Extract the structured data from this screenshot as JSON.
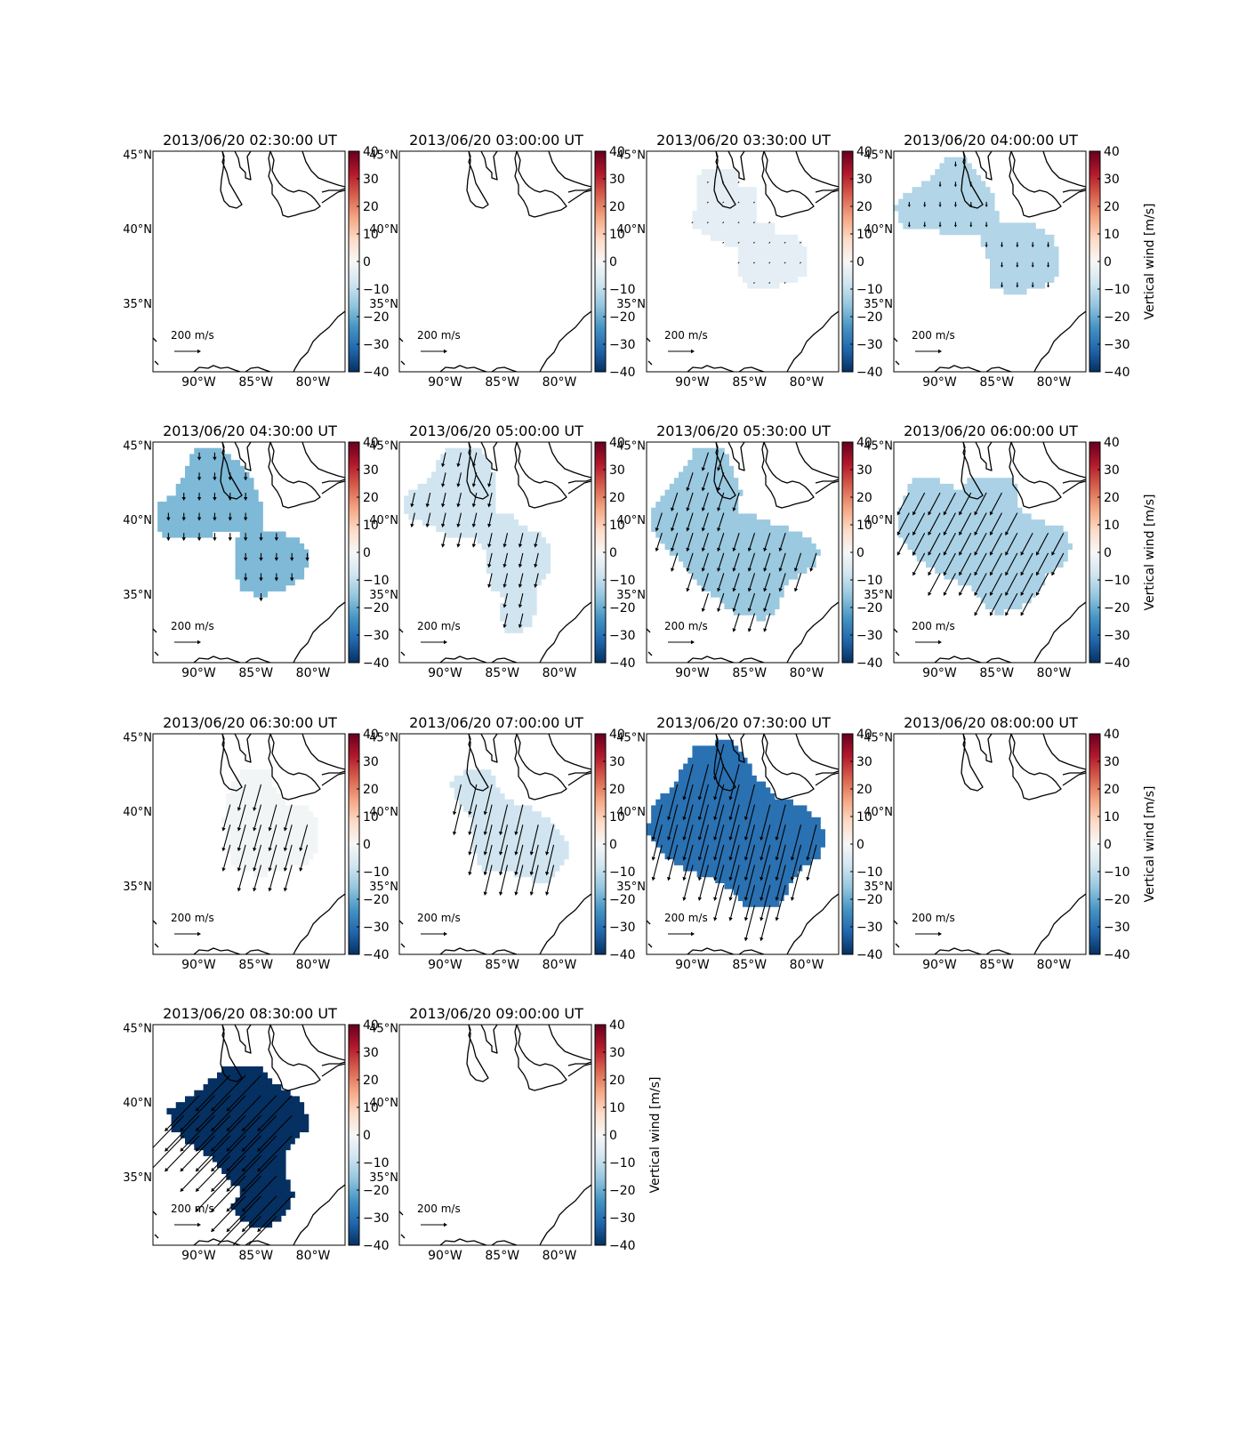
{
  "figure": {
    "colorbar_label": "Vertical wind [m/s]",
    "colorbar_ticks": [
      "40",
      "30",
      "20",
      "10",
      "0",
      "−10",
      "−20",
      "−30",
      "−40"
    ],
    "lat_labels": [
      "45°N",
      "40°N",
      "35°N"
    ],
    "lon_labels": [
      "90°W",
      "85°W",
      "80°W"
    ],
    "quiver_key": "200 m/s",
    "map_extent": {
      "lon": [
        -94,
        -77.2
      ],
      "lat": [
        30.4,
        45.2
      ]
    },
    "colormap": "RdBu_r",
    "value_range": [
      -40,
      40
    ]
  },
  "chart_data": [
    {
      "type": "heatmap",
      "title": "2013/06/20 02:30:00 UT",
      "value_m_s": null,
      "wind_vector": null,
      "region": "none"
    },
    {
      "type": "heatmap",
      "title": "2013/06/20 03:00:00 UT",
      "value_m_s": null,
      "wind_vector": null,
      "region": "none"
    },
    {
      "type": "heatmap",
      "title": "2013/06/20 03:30:00 UT",
      "value_m_s": -4,
      "wind_vector": {
        "u": -10,
        "v": -10
      },
      "region": "r1"
    },
    {
      "type": "heatmap",
      "title": "2013/06/20 04:00:00 UT",
      "value_m_s": -12,
      "wind_vector": {
        "u": 0,
        "v": -40
      },
      "region": "r2"
    },
    {
      "type": "heatmap",
      "title": "2013/06/20 04:30:00 UT",
      "value_m_s": -18,
      "wind_vector": {
        "u": 0,
        "v": -60
      },
      "region": "r3"
    },
    {
      "type": "heatmap",
      "title": "2013/06/20 05:00:00 UT",
      "value_m_s": -8,
      "wind_vector": {
        "u": -25,
        "v": -110
      },
      "region": "r4"
    },
    {
      "type": "heatmap",
      "title": "2013/06/20 05:30:00 UT",
      "value_m_s": -15,
      "wind_vector": {
        "u": -45,
        "v": -140
      },
      "region": "r5"
    },
    {
      "type": "heatmap",
      "title": "2013/06/20 06:00:00 UT",
      "value_m_s": -13,
      "wind_vector": {
        "u": -90,
        "v": -170
      },
      "region": "r6"
    },
    {
      "type": "heatmap",
      "title": "2013/06/20 06:30:00 UT",
      "value_m_s": -1,
      "wind_vector": {
        "u": -55,
        "v": -200
      },
      "region": "r7"
    },
    {
      "type": "heatmap",
      "title": "2013/06/20 07:00:00 UT",
      "value_m_s": -8,
      "wind_vector": {
        "u": -55,
        "v": -230
      },
      "region": "r8"
    },
    {
      "type": "heatmap",
      "title": "2013/06/20 07:30:00 UT",
      "value_m_s": -30,
      "wind_vector": {
        "u": -70,
        "v": -270
      },
      "region": "r9"
    },
    {
      "type": "heatmap",
      "title": "2013/06/20 08:00:00 UT",
      "value_m_s": null,
      "wind_vector": null,
      "region": "none"
    },
    {
      "type": "heatmap",
      "title": "2013/06/20 08:30:00 UT",
      "value_m_s": -40,
      "wind_vector": {
        "u": -260,
        "v": -270
      },
      "region": "r10"
    },
    {
      "type": "heatmap",
      "title": "2013/06/20 09:00:00 UT",
      "value_m_s": null,
      "wind_vector": null,
      "region": "none"
    }
  ]
}
